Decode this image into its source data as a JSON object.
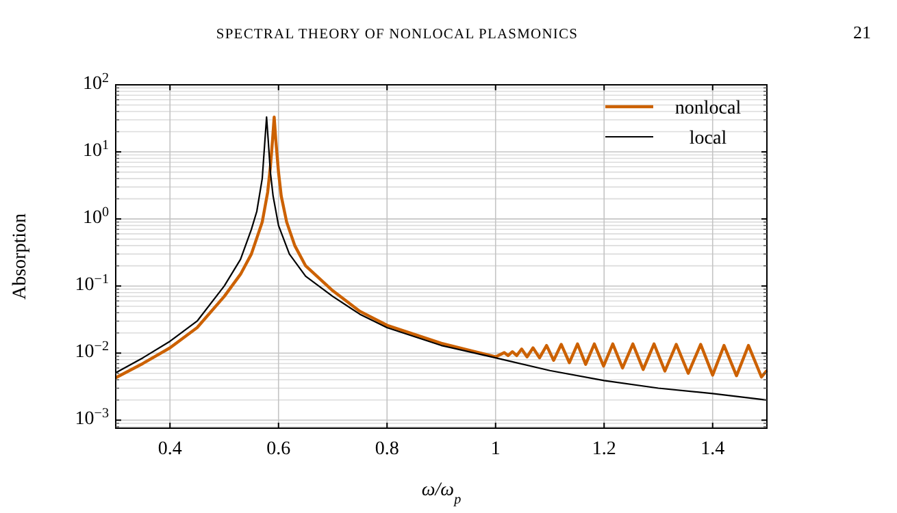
{
  "chart_data": {
    "type": "line",
    "xlabel": "ω/ω$_{p}$",
    "ylabel": "Absorption",
    "annotations": [
      "SPECTRAL THEORY OF NONLOCAL PLASMONICS",
      "21"
    ],
    "log": "y",
    "grid": true,
    "legend": "top right",
    "line_style": "solid",
    "marker": "none",
    "xlim": [
      0.3,
      1.5
    ],
    "xticks": [
      0.4,
      0.6,
      0.8,
      1,
      1.2,
      1.4
    ],
    "ylim": [
      0.00076,
      100
    ],
    "yticks": [
      {
        "value": 0.001,
        "label": "10$^{−3}$"
      },
      {
        "value": 0.01,
        "label": "10$^{−2}$"
      },
      {
        "value": 0.1,
        "label": "10$^{−1}$"
      },
      {
        "value": 1,
        "label": "10$^{0}$"
      },
      {
        "value": 10,
        "label": "10$^{1}$"
      },
      {
        "value": 100,
        "label": "10$^{2}$"
      }
    ],
    "series": [
      {
        "name": "nonlocal",
        "color": "#cc6100",
        "x": [
          0.3,
          0.35,
          0.4,
          0.45,
          0.5,
          0.53,
          0.55,
          0.57,
          0.58,
          0.585,
          0.589,
          0.592,
          0.595,
          0.6,
          0.605,
          0.615,
          0.63,
          0.65,
          0.7,
          0.75,
          0.8,
          0.9,
          1.0,
          1.016,
          1.023,
          1.031,
          1.039,
          1.048,
          1.058,
          1.069,
          1.081,
          1.094,
          1.107,
          1.121,
          1.136,
          1.151,
          1.166,
          1.182,
          1.199,
          1.216,
          1.234,
          1.253,
          1.272,
          1.292,
          1.312,
          1.333,
          1.355,
          1.378,
          1.4,
          1.421,
          1.444,
          1.466,
          1.49,
          1.5
        ],
        "values": [
          0.0043,
          0.007,
          0.012,
          0.024,
          0.07,
          0.15,
          0.3,
          0.9,
          2.5,
          6,
          15,
          33,
          15,
          5,
          2.2,
          0.9,
          0.4,
          0.2,
          0.085,
          0.042,
          0.026,
          0.014,
          0.0088,
          0.0102,
          0.0092,
          0.0105,
          0.0092,
          0.0115,
          0.0088,
          0.012,
          0.0085,
          0.013,
          0.0078,
          0.0135,
          0.0072,
          0.0137,
          0.0068,
          0.0137,
          0.0064,
          0.0137,
          0.006,
          0.0137,
          0.0057,
          0.0137,
          0.0054,
          0.0135,
          0.005,
          0.0135,
          0.0047,
          0.013,
          0.0046,
          0.013,
          0.0044,
          0.0055
        ]
      },
      {
        "name": "local",
        "color": "#000000",
        "x": [
          0.3,
          0.35,
          0.4,
          0.45,
          0.5,
          0.53,
          0.55,
          0.56,
          0.57,
          0.575,
          0.578,
          0.581,
          0.585,
          0.59,
          0.6,
          0.62,
          0.65,
          0.7,
          0.75,
          0.8,
          0.9,
          1.0,
          1.1,
          1.2,
          1.3,
          1.4,
          1.5
        ],
        "values": [
          0.0051,
          0.0085,
          0.015,
          0.03,
          0.1,
          0.25,
          0.7,
          1.3,
          4,
          15,
          33,
          15,
          5,
          2.2,
          0.8,
          0.3,
          0.14,
          0.07,
          0.038,
          0.024,
          0.013,
          0.0085,
          0.0055,
          0.0039,
          0.003,
          0.0025,
          0.002
        ]
      }
    ]
  }
}
